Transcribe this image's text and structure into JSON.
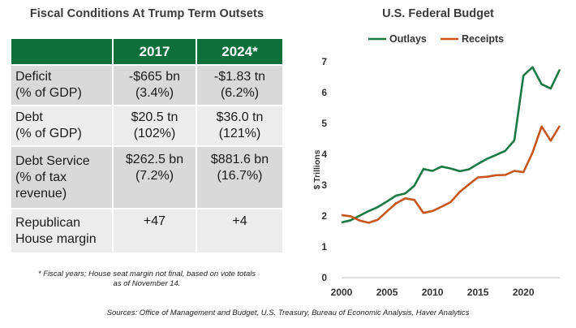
{
  "left_title": "Fiscal Conditions  At Trump Term Outsets",
  "table": {
    "headers": [
      "",
      "2017",
      "2024*"
    ],
    "rows": [
      {
        "label": [
          "Deficit",
          "(% of GDP)"
        ],
        "v2017": [
          "-$665 bn",
          "(3.4%)"
        ],
        "v2024": [
          "-$1.83 tn",
          "(6.2%)"
        ]
      },
      {
        "label": [
          "Debt",
          "(% of GDP)"
        ],
        "v2017": [
          "$20.5 tn",
          "(102%)"
        ],
        "v2024": [
          "$36.0 tn",
          "(121%)"
        ]
      },
      {
        "label": [
          "Debt Service",
          "(% of tax",
          "revenue)"
        ],
        "v2017": [
          "$262.5 bn",
          "(7.2%)"
        ],
        "v2024": [
          "$881.6 bn",
          "(16.7%)"
        ]
      },
      {
        "label": [
          "Republican",
          "House margin"
        ],
        "v2017": [
          "+47"
        ],
        "v2024": [
          "+4"
        ]
      }
    ]
  },
  "footnote": [
    "* Fiscal years; House seat margin not final, based on vote totals",
    "as of November 14."
  ],
  "sources": "Sources: Office of Management and Budget, U.S. Treasury, Bureau of Economic Analysis, Haver Analytics",
  "chart_data": {
    "type": "line",
    "title": "U.S. Federal Budget",
    "xlabel": "",
    "ylabel": "$ Trillions",
    "xlim": [
      2000,
      2024
    ],
    "ylim": [
      0,
      7
    ],
    "xticks": [
      2000,
      2005,
      2010,
      2015,
      2020
    ],
    "yticks": [
      0,
      1,
      2,
      3,
      4,
      5,
      6,
      7
    ],
    "legend_position": "top",
    "x": [
      2000,
      2001,
      2002,
      2003,
      2004,
      2005,
      2006,
      2007,
      2008,
      2009,
      2010,
      2011,
      2012,
      2013,
      2014,
      2015,
      2016,
      2017,
      2018,
      2019,
      2020,
      2021,
      2022,
      2023,
      2024
    ],
    "series": [
      {
        "name": "Outlays",
        "color": "#1b7a44",
        "values": [
          1.79,
          1.86,
          2.01,
          2.16,
          2.29,
          2.47,
          2.66,
          2.73,
          2.98,
          3.52,
          3.46,
          3.6,
          3.54,
          3.45,
          3.51,
          3.69,
          3.85,
          3.98,
          4.11,
          4.45,
          6.55,
          6.82,
          6.27,
          6.13,
          6.75
        ]
      },
      {
        "name": "Receipts",
        "color": "#c8561c",
        "values": [
          2.03,
          1.99,
          1.85,
          1.78,
          1.88,
          2.15,
          2.41,
          2.57,
          2.52,
          2.1,
          2.16,
          2.3,
          2.45,
          2.78,
          3.02,
          3.25,
          3.27,
          3.32,
          3.33,
          3.46,
          3.42,
          4.05,
          4.9,
          4.44,
          4.92
        ]
      }
    ]
  }
}
